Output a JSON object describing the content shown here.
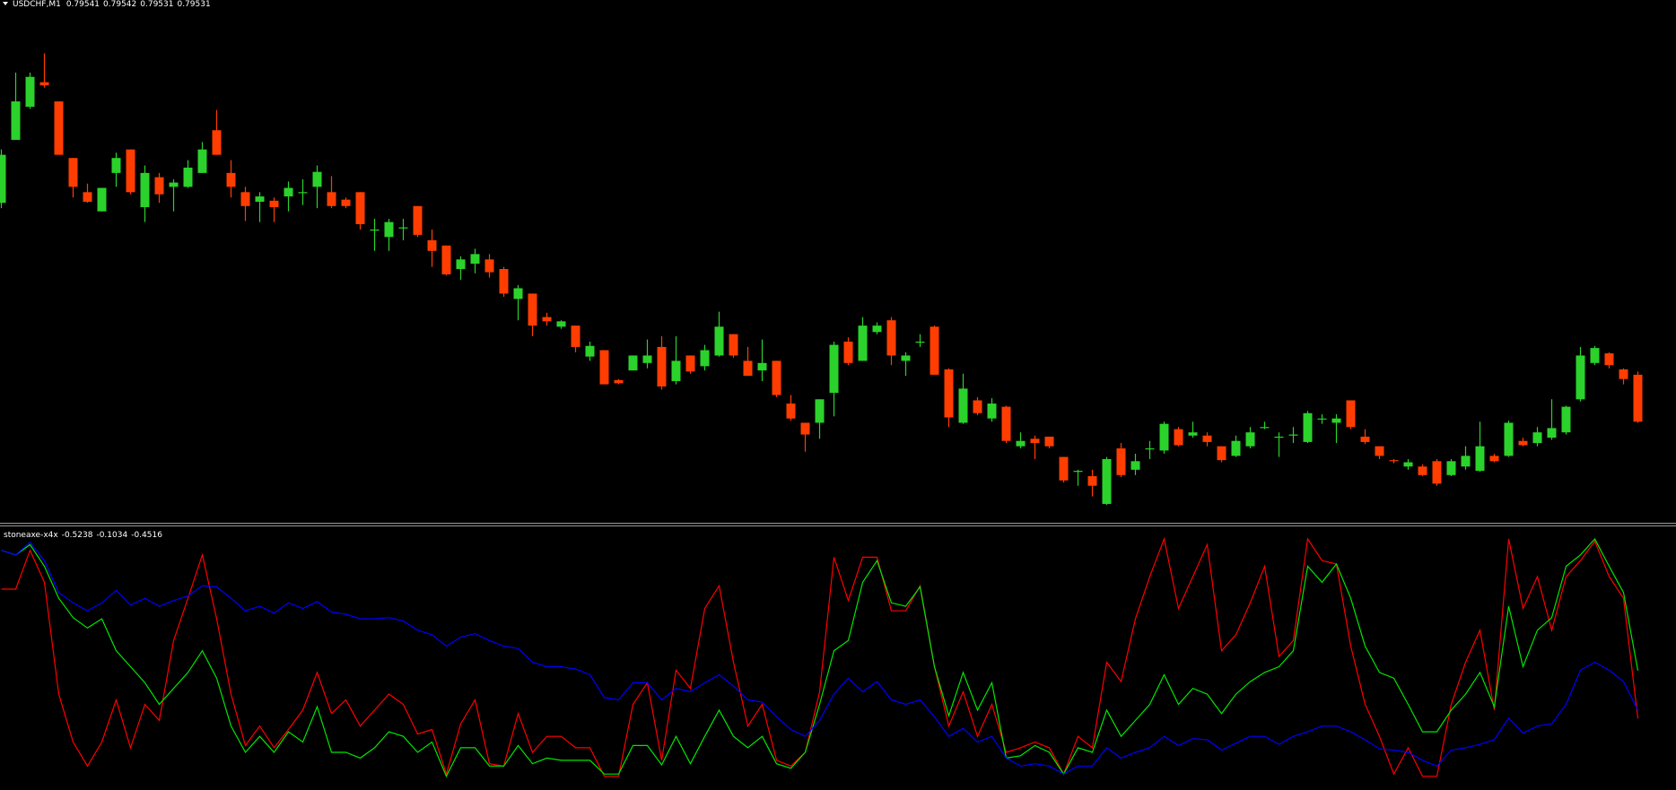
{
  "chart_data": [
    {
      "type": "candlestick",
      "title": "USDCHF,M1",
      "quote": [
        0.79541,
        0.79542,
        0.79531,
        0.79531
      ],
      "up_color": "#2bd22b",
      "down_color": "#ff3d00",
      "ylim": [
        0.79438,
        0.79926
      ],
      "open": [
        0.79736,
        0.79795,
        0.79826,
        0.79849,
        0.79831,
        0.79778,
        0.79746,
        0.79728,
        0.79764,
        0.79786,
        0.79732,
        0.7976,
        0.79751,
        0.79751,
        0.79764,
        0.79804,
        0.79764,
        0.79746,
        0.79737,
        0.79738,
        0.79742,
        0.79745,
        0.79751,
        0.79746,
        0.79739,
        0.79746,
        0.7971,
        0.79704,
        0.79712,
        0.79733,
        0.79701,
        0.79696,
        0.79674,
        0.79679,
        0.79683,
        0.79674,
        0.79646,
        0.79651,
        0.79629,
        0.7962,
        0.79621,
        0.79592,
        0.79598,
        0.7957,
        0.79579,
        0.79586,
        0.79601,
        0.79569,
        0.79593,
        0.79583,
        0.79593,
        0.79613,
        0.79588,
        0.79579,
        0.79588,
        0.79548,
        0.7953,
        0.7953,
        0.79558,
        0.79606,
        0.79588,
        0.79615,
        0.79626,
        0.79588,
        0.79605,
        0.7962,
        0.7958,
        0.7953,
        0.79551,
        0.79534,
        0.79545,
        0.79508,
        0.79515,
        0.79517,
        0.79498,
        0.79484,
        0.7948,
        0.79454,
        0.79506,
        0.79486,
        0.79505,
        0.79504,
        0.79524,
        0.79518,
        0.79518,
        0.79508,
        0.79499,
        0.79508,
        0.79525,
        0.79516,
        0.79518,
        0.79512,
        0.79533,
        0.7953,
        0.79551,
        0.79517,
        0.79508,
        0.79495,
        0.79489,
        0.79489,
        0.79494,
        0.79481,
        0.79489,
        0.79485,
        0.79499,
        0.79499,
        0.79513,
        0.79511,
        0.79516,
        0.79521,
        0.79552,
        0.79586,
        0.79595,
        0.7958,
        0.79575
      ],
      "high": [
        0.79786,
        0.79858,
        0.79858,
        0.79876,
        0.79831,
        0.79778,
        0.79754,
        0.7975,
        0.79783,
        0.79786,
        0.79771,
        0.79764,
        0.79758,
        0.79776,
        0.79793,
        0.79823,
        0.79776,
        0.79751,
        0.79746,
        0.79741,
        0.79756,
        0.79758,
        0.79771,
        0.79761,
        0.79741,
        0.79746,
        0.79721,
        0.79721,
        0.79721,
        0.79733,
        0.79711,
        0.79696,
        0.79686,
        0.79693,
        0.79688,
        0.79676,
        0.79659,
        0.79651,
        0.79633,
        0.79626,
        0.79621,
        0.79606,
        0.79598,
        0.79571,
        0.79593,
        0.79608,
        0.79611,
        0.79611,
        0.79593,
        0.79603,
        0.79634,
        0.79613,
        0.79601,
        0.79608,
        0.79588,
        0.79556,
        0.7953,
        0.79552,
        0.79606,
        0.7961,
        0.79629,
        0.79624,
        0.79629,
        0.79596,
        0.79613,
        0.79621,
        0.79581,
        0.79576,
        0.79554,
        0.79553,
        0.79546,
        0.79521,
        0.79518,
        0.79517,
        0.79498,
        0.79486,
        0.79486,
        0.79498,
        0.79511,
        0.79501,
        0.79513,
        0.79531,
        0.79526,
        0.79531,
        0.79521,
        0.79508,
        0.79518,
        0.79526,
        0.79531,
        0.79521,
        0.79526,
        0.79541,
        0.79538,
        0.79538,
        0.79551,
        0.79524,
        0.79508,
        0.79496,
        0.79496,
        0.79491,
        0.79496,
        0.79496,
        0.79508,
        0.79531,
        0.79501,
        0.79532,
        0.79516,
        0.79526,
        0.79552,
        0.79546,
        0.79601,
        0.79602,
        0.79596,
        0.79581,
        0.79578
      ],
      "low": [
        0.79731,
        0.79795,
        0.79824,
        0.79844,
        0.79781,
        0.79741,
        0.79736,
        0.79728,
        0.79751,
        0.79744,
        0.79718,
        0.79736,
        0.79728,
        0.7975,
        0.79764,
        0.79781,
        0.79741,
        0.79719,
        0.79718,
        0.79718,
        0.79728,
        0.79734,
        0.79731,
        0.79731,
        0.79731,
        0.79711,
        0.79691,
        0.79691,
        0.79701,
        0.79704,
        0.79676,
        0.79668,
        0.79664,
        0.7967,
        0.79666,
        0.79648,
        0.79626,
        0.79611,
        0.79621,
        0.79618,
        0.79596,
        0.79588,
        0.79566,
        0.79566,
        0.79579,
        0.79581,
        0.79561,
        0.79566,
        0.79576,
        0.79579,
        0.79592,
        0.79591,
        0.79574,
        0.79569,
        0.79554,
        0.79532,
        0.79503,
        0.79515,
        0.79536,
        0.79584,
        0.79588,
        0.79613,
        0.79584,
        0.79574,
        0.79601,
        0.79575,
        0.79526,
        0.79529,
        0.79537,
        0.79531,
        0.79511,
        0.79506,
        0.79496,
        0.79506,
        0.79474,
        0.79471,
        0.79461,
        0.79453,
        0.79479,
        0.79481,
        0.79496,
        0.79501,
        0.79508,
        0.79516,
        0.79508,
        0.79493,
        0.79498,
        0.79506,
        0.79524,
        0.79498,
        0.79511,
        0.79511,
        0.79529,
        0.79511,
        0.79524,
        0.7951,
        0.79496,
        0.79492,
        0.79486,
        0.7948,
        0.79471,
        0.7948,
        0.79486,
        0.79484,
        0.79493,
        0.79498,
        0.79508,
        0.79508,
        0.79514,
        0.79519,
        0.7955,
        0.79584,
        0.79581,
        0.79566,
        0.7953
      ],
      "close": [
        0.79781,
        0.79831,
        0.79854,
        0.79846,
        0.79781,
        0.79751,
        0.79737,
        0.7975,
        0.79778,
        0.79746,
        0.79764,
        0.79744,
        0.79755,
        0.79769,
        0.79786,
        0.79781,
        0.79751,
        0.79733,
        0.79742,
        0.79732,
        0.7975,
        0.79746,
        0.79765,
        0.79733,
        0.79733,
        0.79716,
        0.79711,
        0.79718,
        0.79713,
        0.79706,
        0.79691,
        0.79669,
        0.79683,
        0.79688,
        0.79671,
        0.79651,
        0.79656,
        0.79621,
        0.79625,
        0.79625,
        0.79601,
        0.79602,
        0.79566,
        0.79567,
        0.79593,
        0.79593,
        0.79564,
        0.79588,
        0.79578,
        0.79598,
        0.7962,
        0.79593,
        0.79574,
        0.79586,
        0.79556,
        0.79534,
        0.79519,
        0.79552,
        0.79603,
        0.79586,
        0.79621,
        0.79621,
        0.79593,
        0.79593,
        0.79606,
        0.79575,
        0.79535,
        0.79562,
        0.79539,
        0.79548,
        0.79513,
        0.79513,
        0.79511,
        0.79508,
        0.79476,
        0.79485,
        0.79471,
        0.79496,
        0.79481,
        0.79494,
        0.79506,
        0.79529,
        0.79509,
        0.79521,
        0.79512,
        0.79495,
        0.79513,
        0.79521,
        0.79526,
        0.79517,
        0.79519,
        0.79539,
        0.79534,
        0.79534,
        0.79526,
        0.79512,
        0.79499,
        0.79494,
        0.79493,
        0.79481,
        0.79473,
        0.79494,
        0.79499,
        0.79508,
        0.79494,
        0.7953,
        0.79509,
        0.79521,
        0.79525,
        0.79545,
        0.79593,
        0.796,
        0.79584,
        0.79571,
        0.79531
      ]
    },
    {
      "type": "line",
      "title": "stoneaxe-x4x",
      "quote": [
        -0.5238,
        -0.1034,
        -0.4516
      ],
      "ylim": [
        -1.15,
        1.16
      ],
      "series": [
        {
          "color": "#ff0000",
          "values": [
            0.61,
            0.61,
            0.95,
            0.67,
            -0.31,
            -0.73,
            -0.94,
            -0.73,
            -0.36,
            -0.78,
            -0.4,
            -0.54,
            0.16,
            0.53,
            0.91,
            0.35,
            -0.31,
            -0.76,
            -0.59,
            -0.78,
            -0.62,
            -0.45,
            -0.12,
            -0.48,
            -0.36,
            -0.59,
            -0.45,
            -0.31,
            -0.4,
            -0.66,
            -0.62,
            -1.01,
            -0.57,
            -0.36,
            -0.92,
            -0.94,
            -0.48,
            -0.82,
            -0.68,
            -0.68,
            -0.78,
            -0.78,
            -1.03,
            -1.03,
            -0.4,
            -0.21,
            -0.89,
            -0.1,
            -0.26,
            0.44,
            0.64,
            -0.03,
            -0.59,
            -0.4,
            -0.89,
            -0.94,
            -0.82,
            -0.29,
            0.89,
            0.51,
            0.89,
            0.89,
            0.42,
            0.42,
            0.64,
            -0.07,
            -0.59,
            -0.29,
            -0.68,
            -0.4,
            -0.82,
            -0.78,
            -0.73,
            -0.78,
            -1.01,
            -0.68,
            -0.78,
            -0.03,
            -0.2,
            0.35,
            0.72,
            1.05,
            0.44,
            0.72,
            1.0,
            0.07,
            0.21,
            0.49,
            0.81,
            0.02,
            0.16,
            1.05,
            0.86,
            0.83,
            0.11,
            -0.4,
            -0.68,
            -1.01,
            -0.78,
            -1.03,
            -1.03,
            -0.4,
            -0.03,
            0.25,
            -0.45,
            1.05,
            0.44,
            0.72,
            0.25,
            0.72,
            0.86,
            1.03,
            0.72,
            0.53,
            -0.5238
          ]
        },
        {
          "color": "#00e600",
          "values": [
            0.95,
            0.91,
            1.0,
            0.81,
            0.53,
            0.36,
            0.27,
            0.35,
            0.07,
            -0.07,
            -0.21,
            -0.4,
            -0.26,
            -0.12,
            0.07,
            -0.17,
            -0.59,
            -0.82,
            -0.68,
            -0.82,
            -0.64,
            -0.73,
            -0.42,
            -0.82,
            -0.82,
            -0.87,
            -0.78,
            -0.64,
            -0.68,
            -0.82,
            -0.73,
            -1.03,
            -0.78,
            -0.78,
            -0.94,
            -0.94,
            -0.76,
            -0.92,
            -0.87,
            -0.89,
            -0.89,
            -0.89,
            -1.01,
            -1.01,
            -0.76,
            -0.76,
            -0.93,
            -0.68,
            -0.92,
            -0.68,
            -0.45,
            -0.68,
            -0.78,
            -0.68,
            -0.92,
            -0.96,
            -0.82,
            -0.4,
            0.07,
            0.16,
            0.67,
            0.86,
            0.49,
            0.46,
            0.63,
            -0.07,
            -0.5,
            -0.12,
            -0.45,
            -0.21,
            -0.87,
            -0.85,
            -0.76,
            -0.82,
            -1.01,
            -0.78,
            -0.82,
            -0.45,
            -0.68,
            -0.54,
            -0.4,
            -0.14,
            -0.4,
            -0.26,
            -0.31,
            -0.48,
            -0.31,
            -0.2,
            -0.12,
            -0.07,
            0.07,
            0.81,
            0.67,
            0.83,
            0.53,
            0.11,
            -0.12,
            -0.17,
            -0.4,
            -0.64,
            -0.64,
            -0.45,
            -0.31,
            -0.12,
            -0.42,
            0.46,
            -0.07,
            0.25,
            0.36,
            0.81,
            0.91,
            1.05,
            0.81,
            0.58,
            -0.1034
          ]
        },
        {
          "color": "#0000ff",
          "values": [
            0.95,
            0.91,
            1.02,
            0.86,
            0.58,
            0.49,
            0.42,
            0.49,
            0.6,
            0.47,
            0.53,
            0.46,
            0.51,
            0.55,
            0.64,
            0.63,
            0.53,
            0.42,
            0.46,
            0.4,
            0.49,
            0.44,
            0.5,
            0.41,
            0.39,
            0.35,
            0.35,
            0.36,
            0.33,
            0.25,
            0.21,
            0.11,
            0.19,
            0.22,
            0.16,
            0.11,
            0.09,
            -0.03,
            -0.07,
            -0.07,
            -0.09,
            -0.14,
            -0.34,
            -0.36,
            -0.21,
            -0.21,
            -0.36,
            -0.26,
            -0.29,
            -0.21,
            -0.14,
            -0.24,
            -0.36,
            -0.38,
            -0.51,
            -0.62,
            -0.68,
            -0.54,
            -0.31,
            -0.17,
            -0.29,
            -0.2,
            -0.36,
            -0.4,
            -0.36,
            -0.51,
            -0.68,
            -0.61,
            -0.73,
            -0.68,
            -0.87,
            -0.94,
            -0.92,
            -0.94,
            -1.01,
            -0.94,
            -0.94,
            -0.78,
            -0.87,
            -0.82,
            -0.78,
            -0.68,
            -0.76,
            -0.7,
            -0.71,
            -0.8,
            -0.74,
            -0.68,
            -0.68,
            -0.75,
            -0.68,
            -0.64,
            -0.59,
            -0.59,
            -0.64,
            -0.71,
            -0.79,
            -0.8,
            -0.82,
            -0.89,
            -0.94,
            -0.8,
            -0.78,
            -0.75,
            -0.71,
            -0.52,
            -0.65,
            -0.59,
            -0.57,
            -0.4,
            -0.1,
            -0.03,
            -0.1,
            -0.2,
            -0.4516
          ]
        }
      ]
    }
  ]
}
